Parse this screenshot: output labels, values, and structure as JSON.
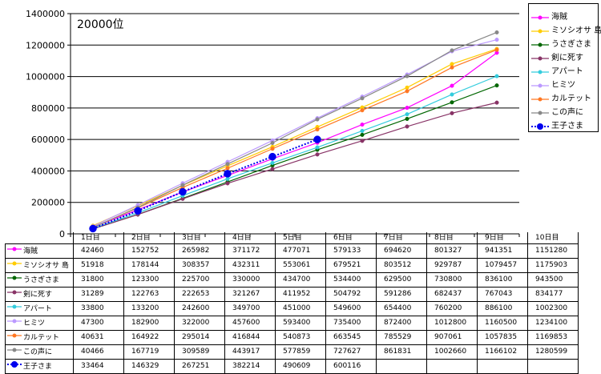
{
  "chart_data": {
    "type": "line",
    "annotation": "20000位",
    "categories": [
      "1日目",
      "2日目",
      "3日目",
      "4日目",
      "5日目",
      "6日目",
      "7日目",
      "8日目",
      "9日目",
      "10日目"
    ],
    "ylim": [
      0,
      1400000
    ],
    "yticks": [
      "0",
      "200000",
      "400000",
      "600000",
      "800000",
      "1000000",
      "1200000",
      "1400000"
    ],
    "grid": true,
    "legend_position": "right",
    "series": [
      {
        "name": "海賊",
        "color": "#ff00ff",
        "marker": "circle",
        "values": [
          42460,
          152752,
          265982,
          371172,
          477071,
          579133,
          694620,
          801327,
          941351,
          1151280
        ]
      },
      {
        "name": "ミソシオサ 島",
        "color": "#ffcc00",
        "marker": "circle",
        "values": [
          51918,
          178144,
          308357,
          432311,
          553061,
          679521,
          803512,
          929787,
          1079457,
          1175903
        ]
      },
      {
        "name": "うさぎさま",
        "color": "#006600",
        "marker": "circle",
        "values": [
          31800,
          123300,
          225700,
          330000,
          434700,
          534400,
          629500,
          730800,
          836100,
          943500
        ]
      },
      {
        "name": "剣に死す",
        "color": "#883366",
        "marker": "circle",
        "values": [
          31289,
          122763,
          222653,
          321267,
          411952,
          504792,
          591286,
          682437,
          767043,
          834177
        ]
      },
      {
        "name": "アパート",
        "color": "#33ccdd",
        "marker": "circle",
        "values": [
          33800,
          133200,
          242600,
          349700,
          451000,
          549600,
          654400,
          760200,
          886100,
          1002300
        ]
      },
      {
        "name": "ヒミツ",
        "color": "#bb99ff",
        "marker": "circle",
        "values": [
          47300,
          182900,
          322000,
          457600,
          593400,
          735400,
          872400,
          1012800,
          1160500,
          1234100
        ]
      },
      {
        "name": "カルテット",
        "color": "#ff7722",
        "marker": "circle",
        "values": [
          40631,
          164922,
          295014,
          416844,
          540873,
          663545,
          785529,
          907061,
          1057835,
          1169853
        ]
      },
      {
        "name": "この声に",
        "color": "#888888",
        "marker": "circle",
        "values": [
          40466,
          167719,
          309589,
          443917,
          577859,
          727627,
          861831,
          1002660,
          1166102,
          1280599
        ]
      },
      {
        "name": "王子さま",
        "color": "#0000ee",
        "marker": "bigdot",
        "dash": true,
        "values": [
          33464,
          146329,
          267251,
          382214,
          490609,
          600116,
          null,
          null,
          null,
          null
        ]
      }
    ]
  }
}
